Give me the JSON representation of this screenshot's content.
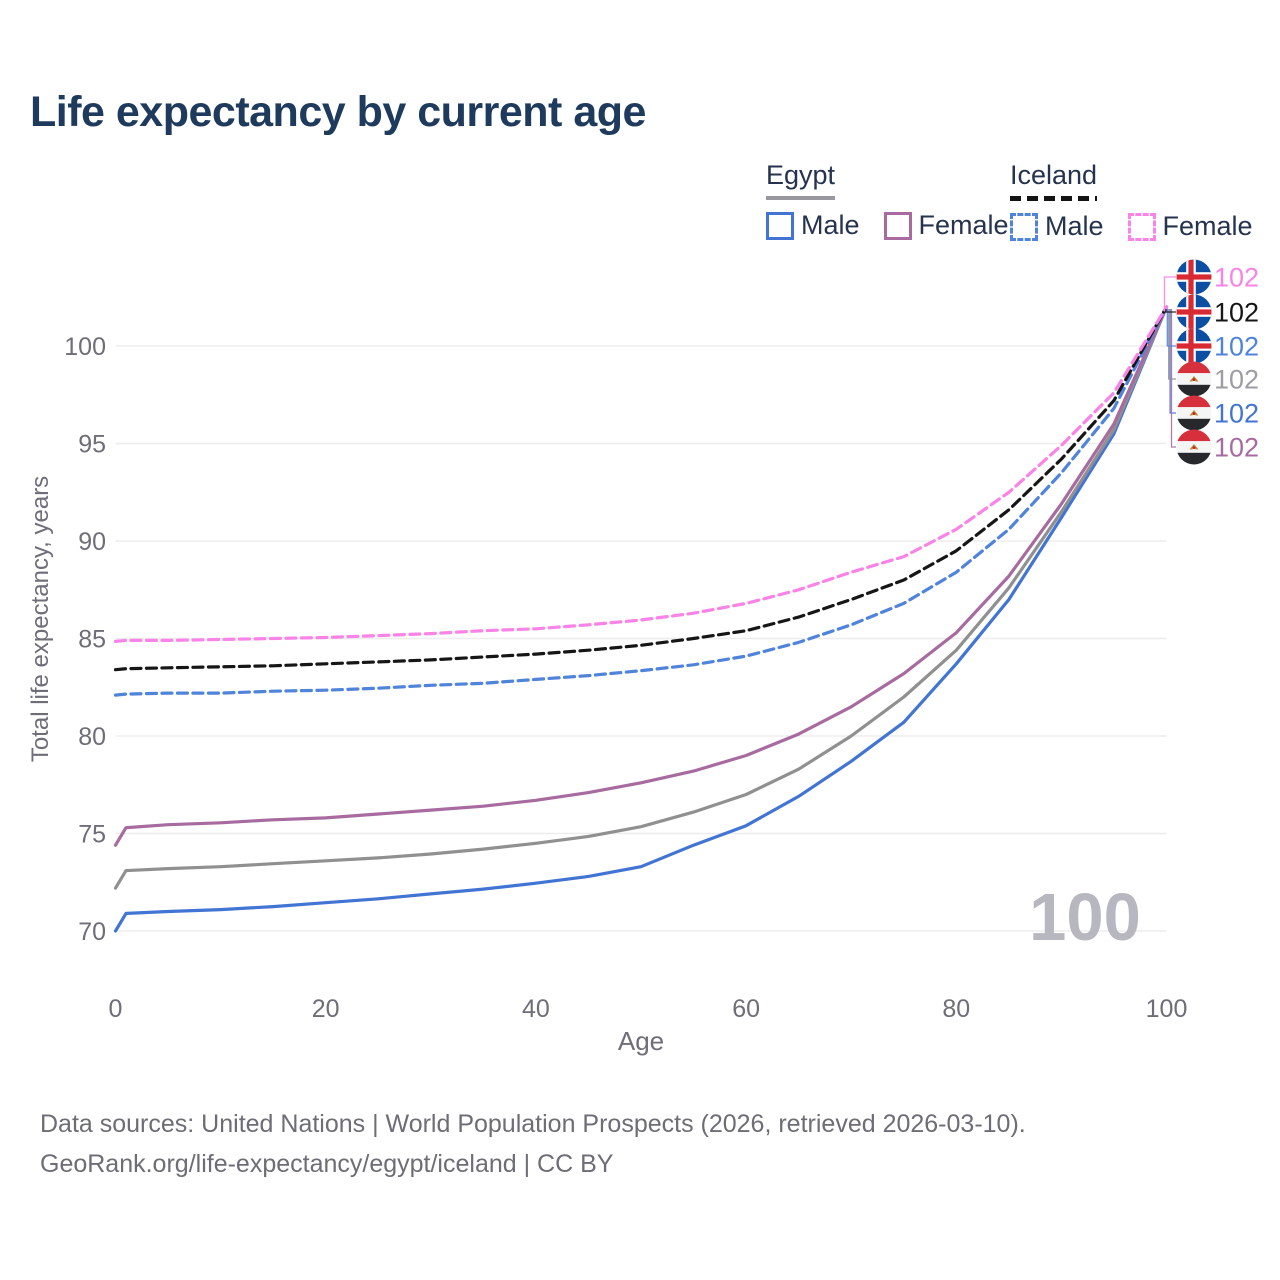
{
  "title": "Life expectancy by current age",
  "legend": {
    "groups": [
      {
        "country": "Egypt",
        "line_style": "solid",
        "underline_color": "#98989e",
        "items": [
          {
            "label": "Male",
            "color": "#4274d4",
            "dash": false
          },
          {
            "label": "Female",
            "color": "#a76ba0",
            "dash": false
          }
        ]
      },
      {
        "country": "Iceland",
        "line_style": "dashed",
        "underline_color": "#141414",
        "items": [
          {
            "label": "Male",
            "color": "#5083da",
            "dash": true
          },
          {
            "label": "Female",
            "color": "#f983e6",
            "dash": true
          }
        ]
      }
    ]
  },
  "chart_data": {
    "type": "line",
    "title": "Life expectancy by current age",
    "xlabel": "Age",
    "ylabel": "Total life expectancy, years",
    "xlim": [
      0,
      100
    ],
    "ylim": [
      70,
      102
    ],
    "x_ticks": [
      0,
      20,
      40,
      60,
      80,
      100
    ],
    "y_ticks": [
      100,
      95,
      90,
      85,
      80,
      75,
      70
    ],
    "grid": "horizontal",
    "legend_position": "top-right",
    "hover_age": "100",
    "ages": [
      0,
      1,
      5,
      10,
      15,
      20,
      25,
      30,
      35,
      40,
      45,
      50,
      55,
      60,
      65,
      70,
      75,
      80,
      85,
      90,
      95,
      100
    ],
    "series": [
      {
        "name": "Egypt Male",
        "country": "Egypt",
        "sex": "Male",
        "color": "#4274d4",
        "dash": false,
        "label_rank": 4,
        "end_label": "102",
        "flag": "egypt",
        "values": [
          70.0,
          70.9,
          71.0,
          71.1,
          71.25,
          71.45,
          71.65,
          71.9,
          72.15,
          72.45,
          72.8,
          73.3,
          74.4,
          75.4,
          76.9,
          78.7,
          80.7,
          83.7,
          87.0,
          91.2,
          95.5,
          102
        ]
      },
      {
        "name": "Egypt Both sexes",
        "country": "Egypt",
        "sex": "Both",
        "color": "#909090",
        "dash": false,
        "label_rank": 3,
        "end_label": "102",
        "label_color": "#9d9da3",
        "flag": "egypt",
        "values": [
          72.2,
          73.1,
          73.2,
          73.3,
          73.45,
          73.6,
          73.75,
          73.95,
          74.2,
          74.5,
          74.85,
          75.35,
          76.1,
          77.0,
          78.3,
          80.0,
          82.0,
          84.4,
          87.6,
          91.5,
          95.7,
          102
        ]
      },
      {
        "name": "Egypt Female",
        "country": "Egypt",
        "sex": "Female",
        "color": "#a76ba0",
        "dash": false,
        "label_rank": 5,
        "end_label": "102",
        "flag": "egypt",
        "values": [
          74.4,
          75.3,
          75.45,
          75.55,
          75.7,
          75.8,
          76.0,
          76.2,
          76.4,
          76.7,
          77.1,
          77.6,
          78.2,
          79.0,
          80.1,
          81.5,
          83.2,
          85.3,
          88.2,
          91.9,
          96.0,
          102
        ]
      },
      {
        "name": "Iceland Male",
        "country": "Iceland",
        "sex": "Male",
        "color": "#5083da",
        "dash": true,
        "label_rank": 2,
        "end_label": "102",
        "flag": "iceland",
        "values": [
          82.1,
          82.15,
          82.2,
          82.2,
          82.3,
          82.35,
          82.45,
          82.6,
          82.7,
          82.9,
          83.1,
          83.35,
          83.65,
          84.1,
          84.8,
          85.7,
          86.8,
          88.4,
          90.6,
          93.5,
          96.8,
          102
        ]
      },
      {
        "name": "Iceland Both sexes",
        "country": "Iceland",
        "sex": "Both",
        "color": "#161616",
        "dash": true,
        "label_rank": 1,
        "end_label": "102",
        "flag": "iceland",
        "values": [
          83.4,
          83.45,
          83.5,
          83.55,
          83.6,
          83.7,
          83.8,
          83.9,
          84.05,
          84.2,
          84.4,
          84.65,
          85.0,
          85.4,
          86.1,
          87.0,
          88.0,
          89.5,
          91.6,
          94.2,
          97.2,
          102
        ]
      },
      {
        "name": "Iceland Female",
        "country": "Iceland",
        "sex": "Female",
        "color": "#f983e6",
        "dash": true,
        "label_rank": 0,
        "end_label": "102",
        "flag": "iceland",
        "values": [
          84.85,
          84.9,
          84.9,
          84.95,
          85.0,
          85.05,
          85.15,
          85.25,
          85.4,
          85.5,
          85.7,
          85.95,
          86.3,
          86.8,
          87.5,
          88.4,
          89.2,
          90.6,
          92.5,
          94.9,
          97.6,
          102
        ]
      }
    ]
  },
  "colors": {
    "grid": "#ededed",
    "axis_text": "#6e6e78",
    "watermark": "#b7b7bf",
    "title": "#1e3a5c",
    "legend_text": "#25334e",
    "footer_text": "#6d6d75"
  },
  "flags": {
    "iceland": {
      "base": "#0b4ea2",
      "cross": "#ffffff",
      "inner": "#d72a33"
    },
    "egypt": {
      "top": "#d6303c",
      "mid": "#f4f5f5",
      "bottom": "#26282b",
      "emblem": "#bd8a2e",
      "emblem_accent": "#c2252f"
    }
  },
  "footer": {
    "line1": "Data sources: United Nations | World Population Prospects (2026, retrieved 2026-03-10).",
    "line2": "GeoRank.org/life-expectancy/egypt/iceland | CC BY"
  }
}
